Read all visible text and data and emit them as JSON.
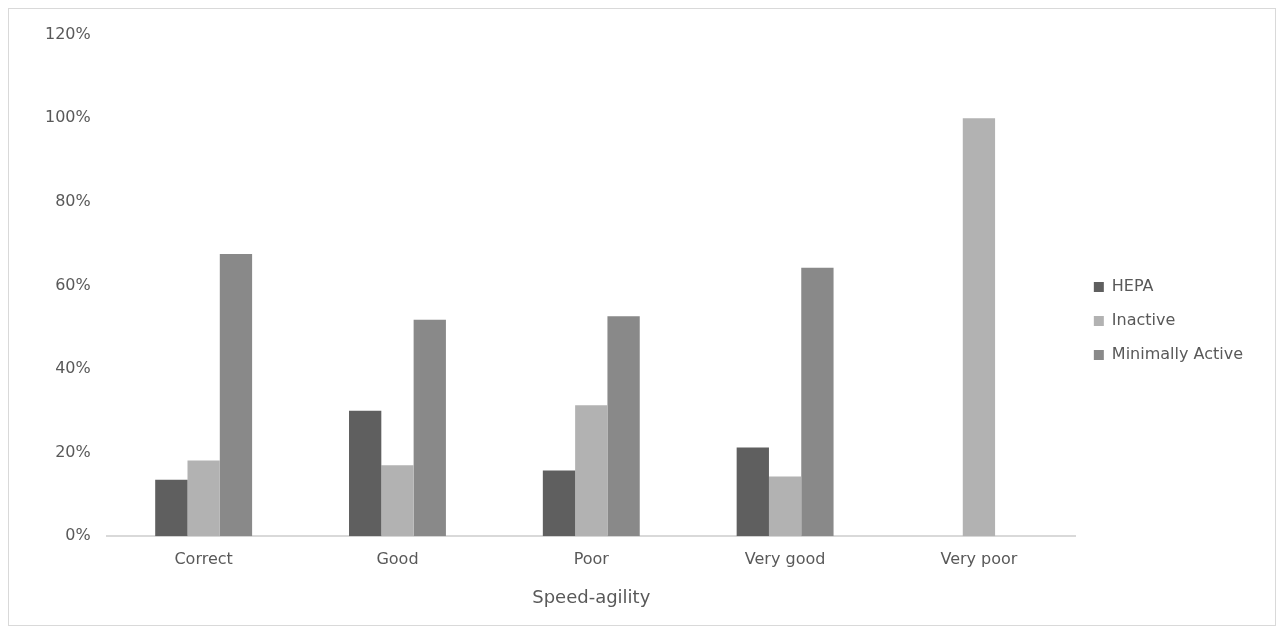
{
  "chart_data": {
    "type": "bar",
    "xlabel": "Speed-agility",
    "categories": [
      "Correct",
      "Good",
      "Poor",
      "Very good",
      "Very poor"
    ],
    "series": [
      {
        "name": "HEPA",
        "color": "#5f5f5f",
        "values": [
          13.5,
          30,
          15.7,
          21.2,
          0
        ]
      },
      {
        "name": "Inactive",
        "color": "#b2b2b2",
        "values": [
          18.1,
          17,
          31.3,
          14.3,
          100
        ]
      },
      {
        "name": "Minimally Active",
        "color": "#898989",
        "values": [
          67.5,
          51.8,
          52.6,
          64.2,
          0
        ]
      }
    ],
    "ylim": [
      0,
      120
    ],
    "yticks": [
      {
        "value": 0,
        "label": "0%"
      },
      {
        "value": 20,
        "label": "20%"
      },
      {
        "value": 40,
        "label": "40%"
      },
      {
        "value": 60,
        "label": "60%"
      },
      {
        "value": 80,
        "label": "80%"
      },
      {
        "value": 100,
        "label": "100%"
      },
      {
        "value": 120,
        "label": "120%"
      }
    ],
    "grid": false,
    "legend": "right"
  }
}
